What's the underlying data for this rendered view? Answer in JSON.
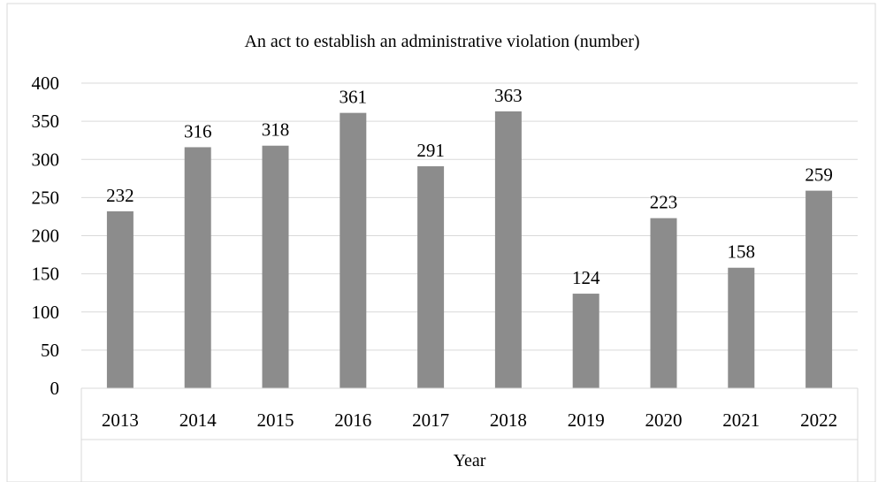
{
  "chart_data": {
    "type": "bar",
    "title": "An act to establish an administrative violation (number)",
    "xlabel": "Year",
    "ylabel": "",
    "categories": [
      "2013",
      "2014",
      "2015",
      "2016",
      "2017",
      "2018",
      "2019",
      "2020",
      "2021",
      "2022"
    ],
    "values": [
      232,
      316,
      318,
      361,
      291,
      363,
      124,
      223,
      158,
      259
    ],
    "ylim": [
      0,
      400
    ],
    "yticks": [
      0,
      50,
      100,
      150,
      200,
      250,
      300,
      350,
      400
    ],
    "grid": true,
    "legend": "none",
    "bar_color": "#8c8c8c",
    "grid_color": "#d9d9d9"
  }
}
